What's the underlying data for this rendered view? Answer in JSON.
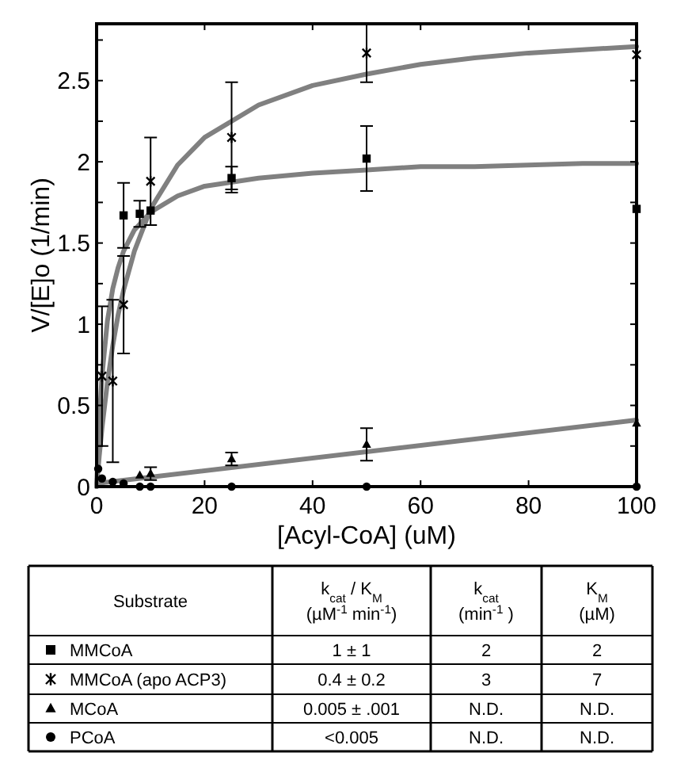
{
  "chart_data": {
    "type": "scatter",
    "xlabel": "[Acyl-CoA] (uM)",
    "ylabel": "V/[E]o (1/min)",
    "xlim": [
      0,
      100
    ],
    "xticks": [
      0,
      20,
      40,
      60,
      80,
      100
    ],
    "ylim": [
      0,
      2.85
    ],
    "yticks": [
      0,
      {
        "value": 0.25,
        "label": null
      },
      0.5,
      {
        "value": 0.75,
        "label": null
      },
      1,
      {
        "value": 1.25,
        "label": null
      },
      1.5,
      {
        "value": 1.75,
        "label": null
      },
      2,
      {
        "value": 2.25,
        "label": null
      },
      2.5,
      {
        "value": 2.75,
        "label": null
      }
    ],
    "grid": false,
    "legend": "bottom",
    "series": [
      {
        "type": "line",
        "color": "#808080",
        "x": [
          0,
          0.5,
          1,
          2,
          3,
          4,
          5,
          7,
          10,
          15,
          20,
          30,
          40,
          50,
          60,
          70,
          80,
          90,
          100
        ],
        "values": [
          0,
          0.41,
          0.68,
          1.02,
          1.22,
          1.35,
          1.45,
          1.58,
          1.69,
          1.79,
          1.85,
          1.9,
          1.93,
          1.95,
          1.97,
          1.97,
          1.98,
          1.99,
          1.99
        ]
      },
      {
        "type": "line",
        "color": "#808080",
        "x": [
          0,
          0.5,
          1,
          2,
          3,
          4,
          5,
          7,
          10,
          15,
          20,
          30,
          40,
          50,
          60,
          70,
          80,
          90,
          100
        ],
        "values": [
          0,
          0.19,
          0.36,
          0.64,
          0.87,
          1.06,
          1.21,
          1.45,
          1.71,
          1.98,
          2.15,
          2.35,
          2.47,
          2.54,
          2.6,
          2.64,
          2.67,
          2.69,
          2.71
        ]
      },
      {
        "type": "line",
        "color": "#808080",
        "x": [
          0,
          100
        ],
        "values": [
          0.02,
          0.41
        ]
      },
      {
        "name": "MMCoA",
        "marker": "square",
        "color": "#000000",
        "x": [
          5,
          8,
          10,
          25,
          50,
          100
        ],
        "values": [
          1.67,
          1.68,
          1.7,
          1.9,
          2.02,
          1.71
        ],
        "errors": [
          0.2,
          0.08,
          null,
          0.07,
          0.2,
          null
        ]
      },
      {
        "name": "MMCoA (apo ACP3)",
        "marker": "cross",
        "color": "#000000",
        "x": [
          1,
          3,
          5,
          10,
          25,
          50,
          100
        ],
        "values": [
          0.68,
          0.65,
          1.12,
          1.88,
          2.15,
          2.67,
          2.66
        ],
        "errors": [
          0.43,
          0.5,
          0.3,
          0.27,
          0.34,
          0.18,
          null
        ]
      },
      {
        "name": "MCoA",
        "marker": "triangle",
        "color": "#000000",
        "x": [
          8,
          10,
          25,
          50,
          100
        ],
        "values": [
          0.07,
          0.08,
          0.17,
          0.26,
          0.39
        ],
        "errors": [
          null,
          0.04,
          0.04,
          0.1,
          null
        ]
      },
      {
        "name": "PCoA",
        "marker": "circle",
        "color": "#000000",
        "x": [
          0.3,
          1,
          3,
          5,
          8,
          10,
          25,
          50,
          100
        ],
        "values": [
          0.11,
          0.05,
          0.03,
          0.02,
          0,
          0,
          0,
          0,
          0
        ]
      }
    ],
    "annotations": [
      "Substrate",
      "k$_{cat}$ / K$_{M}$",
      "(µM$^{-1}$ min$^{-1}$)",
      "k$_{cat}$",
      "(min$^{-1}$ )",
      "K$_{M}$",
      "(µM)",
      "1 ± 1",
      "2",
      "2",
      "0.4 ± 0.2",
      "3",
      "7",
      "0.005 ± .001",
      "N.D.",
      "N.D.",
      "<0.005",
      "N.D.",
      "N.D."
    ]
  }
}
